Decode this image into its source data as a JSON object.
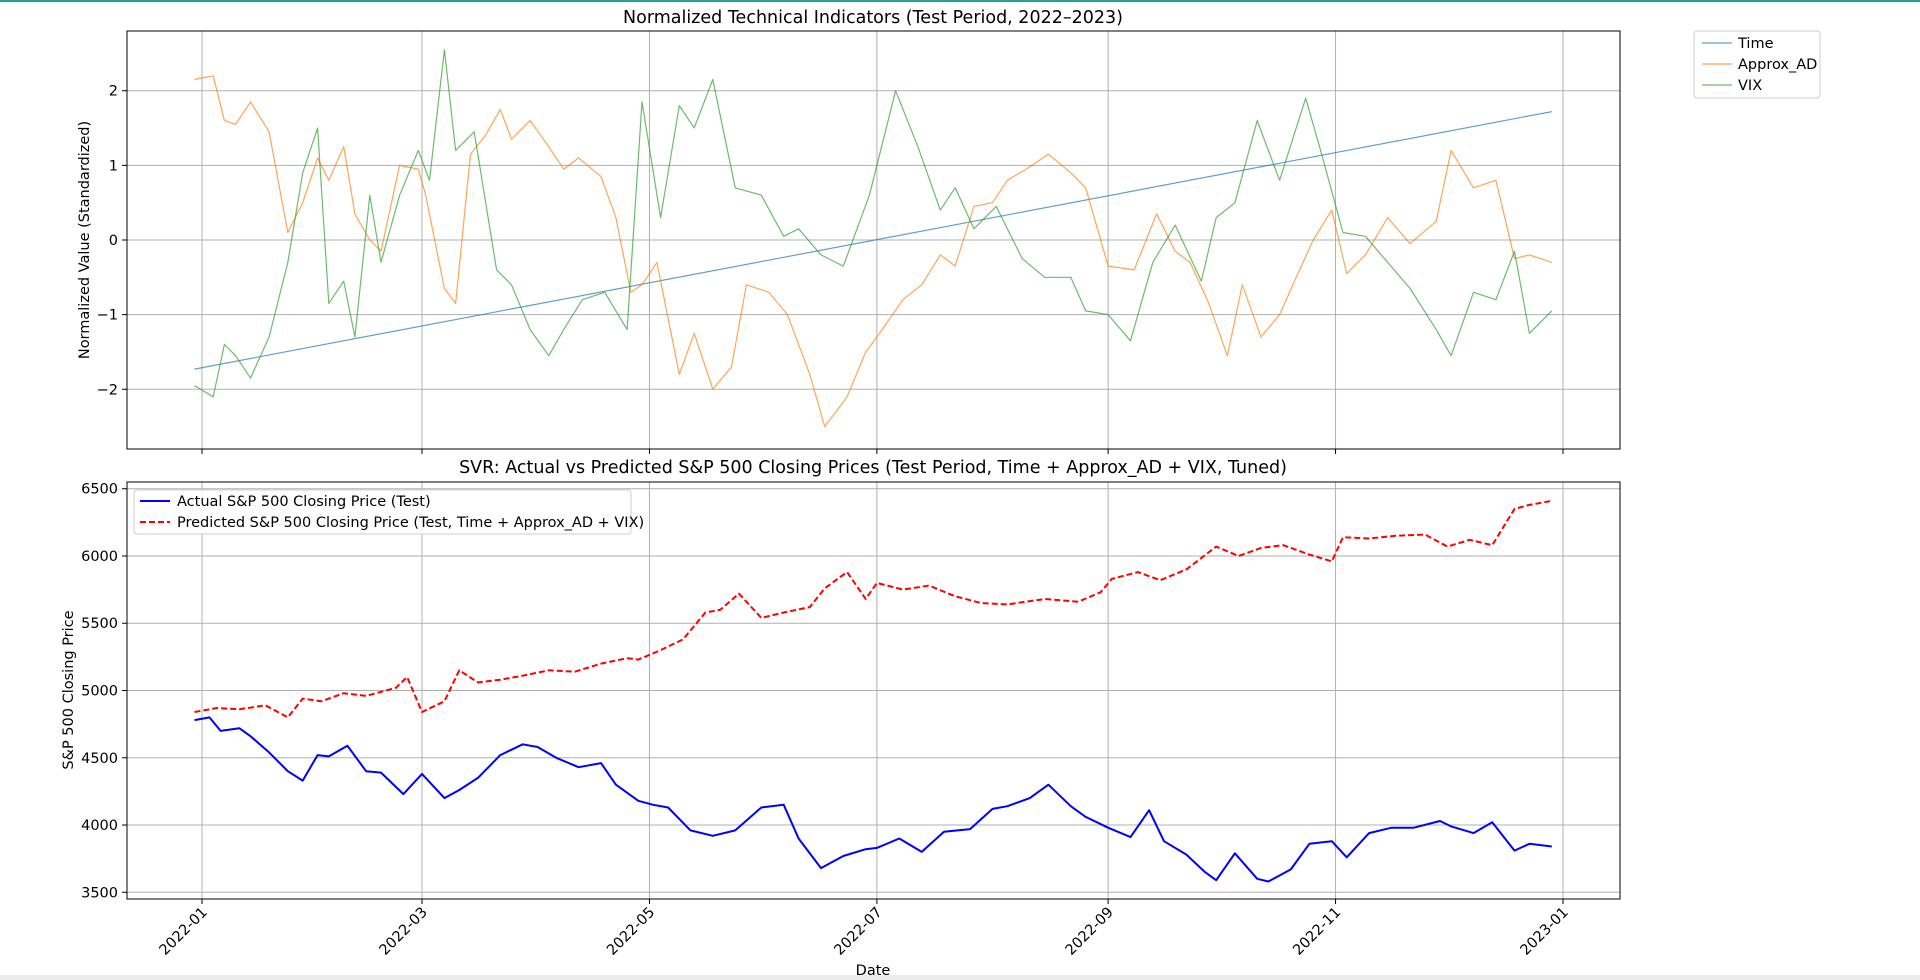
{
  "colors": {
    "time": "#1f77b4",
    "approx_ad": "#ff7f0e",
    "vix": "#2ca02c",
    "actual": "#0000ff",
    "predicted": "#ff0000",
    "accent_bar": "#20a0a0"
  },
  "chart_data": [
    {
      "type": "line",
      "title": "Normalized Technical Indicators (Test Period, 2022–2023)",
      "xlabel": "",
      "ylabel": "Normalized Value (Standardized)",
      "ylim": [
        -2.8,
        2.8
      ],
      "yticks": [
        -2,
        -1,
        0,
        1,
        2
      ],
      "ytick_labels": [
        "−2",
        "−1",
        "0",
        "1",
        "2"
      ],
      "legend": "outside-top-right",
      "grid": true,
      "series": [
        {
          "name": "Time",
          "x": [
            "2021-12-30",
            "2022-12-29"
          ],
          "values": [
            -1.73,
            1.72
          ]
        },
        {
          "name": "Approx_AD",
          "x": [
            "2021-12-30",
            "2022-01-04",
            "2022-01-07",
            "2022-01-10",
            "2022-01-14",
            "2022-01-19",
            "2022-01-24",
            "2022-01-28",
            "2022-02-01",
            "2022-02-04",
            "2022-02-08",
            "2022-02-11",
            "2022-02-15",
            "2022-02-18",
            "2022-02-23",
            "2022-02-28",
            "2022-03-02",
            "2022-03-07",
            "2022-03-10",
            "2022-03-14",
            "2022-03-18",
            "2022-03-22",
            "2022-03-25",
            "2022-03-30",
            "2022-04-04",
            "2022-04-08",
            "2022-04-12",
            "2022-04-18",
            "2022-04-22",
            "2022-04-26",
            "2022-04-29",
            "2022-05-03",
            "2022-05-09",
            "2022-05-13",
            "2022-05-18",
            "2022-05-23",
            "2022-05-27",
            "2022-06-02",
            "2022-06-07",
            "2022-06-13",
            "2022-06-17",
            "2022-06-23",
            "2022-06-28",
            "2022-07-01",
            "2022-07-08",
            "2022-07-13",
            "2022-07-18",
            "2022-07-22",
            "2022-07-27",
            "2022-08-01",
            "2022-08-05",
            "2022-08-10",
            "2022-08-16",
            "2022-08-22",
            "2022-08-26",
            "2022-09-01",
            "2022-09-08",
            "2022-09-14",
            "2022-09-19",
            "2022-09-23",
            "2022-09-28",
            "2022-10-03",
            "2022-10-07",
            "2022-10-12",
            "2022-10-17",
            "2022-10-21",
            "2022-10-26",
            "2022-10-31",
            "2022-11-04",
            "2022-11-09",
            "2022-11-15",
            "2022-11-21",
            "2022-11-28",
            "2022-12-02",
            "2022-12-08",
            "2022-12-14",
            "2022-12-19",
            "2022-12-23",
            "2022-12-29"
          ],
          "values": [
            2.15,
            2.2,
            1.6,
            1.55,
            1.85,
            1.45,
            0.1,
            0.5,
            1.1,
            0.8,
            1.25,
            0.35,
            0.0,
            -0.15,
            1.0,
            0.95,
            0.6,
            -0.65,
            -0.85,
            1.15,
            1.4,
            1.75,
            1.35,
            1.6,
            1.25,
            0.95,
            1.1,
            0.85,
            0.3,
            -0.7,
            -0.6,
            -0.3,
            -1.8,
            -1.25,
            -2.0,
            -1.7,
            -0.6,
            -0.7,
            -1.0,
            -1.8,
            -2.5,
            -2.1,
            -1.5,
            -1.3,
            -0.8,
            -0.6,
            -0.2,
            -0.35,
            0.45,
            0.5,
            0.8,
            0.95,
            1.15,
            0.9,
            0.7,
            -0.35,
            -0.4,
            0.35,
            -0.15,
            -0.3,
            -0.85,
            -1.55,
            -0.6,
            -1.3,
            -1.0,
            -0.55,
            0.0,
            0.4,
            -0.45,
            -0.2,
            0.3,
            -0.05,
            0.25,
            1.2,
            0.7,
            0.8,
            -0.25,
            -0.2,
            -0.3
          ]
        },
        {
          "name": "VIX",
          "x": [
            "2021-12-30",
            "2022-01-04",
            "2022-01-07",
            "2022-01-10",
            "2022-01-14",
            "2022-01-19",
            "2022-01-24",
            "2022-01-28",
            "2022-02-01",
            "2022-02-04",
            "2022-02-08",
            "2022-02-11",
            "2022-02-15",
            "2022-02-18",
            "2022-02-23",
            "2022-02-28",
            "2022-03-03",
            "2022-03-07",
            "2022-03-10",
            "2022-03-15",
            "2022-03-21",
            "2022-03-25",
            "2022-03-30",
            "2022-04-04",
            "2022-04-08",
            "2022-04-13",
            "2022-04-19",
            "2022-04-25",
            "2022-04-29",
            "2022-05-04",
            "2022-05-09",
            "2022-05-13",
            "2022-05-18",
            "2022-05-24",
            "2022-05-31",
            "2022-06-06",
            "2022-06-10",
            "2022-06-16",
            "2022-06-22",
            "2022-06-29",
            "2022-07-06",
            "2022-07-12",
            "2022-07-18",
            "2022-07-22",
            "2022-07-27",
            "2022-08-02",
            "2022-08-09",
            "2022-08-15",
            "2022-08-22",
            "2022-08-26",
            "2022-09-01",
            "2022-09-07",
            "2022-09-13",
            "2022-09-19",
            "2022-09-26",
            "2022-09-30",
            "2022-10-05",
            "2022-10-11",
            "2022-10-17",
            "2022-10-24",
            "2022-10-28",
            "2022-11-03",
            "2022-11-09",
            "2022-11-15",
            "2022-11-21",
            "2022-11-28",
            "2022-12-02",
            "2022-12-08",
            "2022-12-14",
            "2022-12-19",
            "2022-12-23",
            "2022-12-29"
          ],
          "values": [
            -1.95,
            -2.1,
            -1.4,
            -1.55,
            -1.85,
            -1.3,
            -0.3,
            0.9,
            1.5,
            -0.85,
            -0.55,
            -1.3,
            0.6,
            -0.3,
            0.6,
            1.2,
            0.8,
            2.55,
            1.2,
            1.45,
            -0.4,
            -0.6,
            -1.2,
            -1.55,
            -1.2,
            -0.8,
            -0.7,
            -1.2,
            1.85,
            0.3,
            1.8,
            1.5,
            2.15,
            0.7,
            0.6,
            0.05,
            0.15,
            -0.2,
            -0.35,
            0.6,
            2.0,
            1.25,
            0.4,
            0.7,
            0.15,
            0.45,
            -0.25,
            -0.5,
            -0.5,
            -0.95,
            -1.0,
            -1.35,
            -0.3,
            0.2,
            -0.55,
            0.3,
            0.5,
            1.6,
            0.8,
            1.9,
            1.2,
            0.1,
            0.05,
            -0.3,
            -0.65,
            -1.2,
            -1.55,
            -0.7,
            -0.8,
            -0.15,
            -1.25,
            -0.95
          ]
        }
      ]
    },
    {
      "type": "line",
      "title": "SVR: Actual vs Predicted S&P 500 Closing Prices (Test Period, Time + Approx_AD + VIX, Tuned)",
      "xlabel": "Date",
      "ylabel": "S&P 500 Closing Price",
      "ylim": [
        3450,
        6550
      ],
      "yticks": [
        3500,
        4000,
        4500,
        5000,
        5500,
        6000,
        6500
      ],
      "legend": "upper-left",
      "grid": true,
      "series": [
        {
          "name": "Actual S&P 500 Closing Price (Test)",
          "style": "solid",
          "x": [
            "2021-12-30",
            "2022-01-03",
            "2022-01-06",
            "2022-01-11",
            "2022-01-14",
            "2022-01-19",
            "2022-01-24",
            "2022-01-28",
            "2022-02-01",
            "2022-02-04",
            "2022-02-09",
            "2022-02-14",
            "2022-02-18",
            "2022-02-24",
            "2022-03-01",
            "2022-03-07",
            "2022-03-11",
            "2022-03-16",
            "2022-03-22",
            "2022-03-28",
            "2022-04-01",
            "2022-04-06",
            "2022-04-12",
            "2022-04-18",
            "2022-04-22",
            "2022-04-28",
            "2022-05-02",
            "2022-05-06",
            "2022-05-12",
            "2022-05-18",
            "2022-05-24",
            "2022-05-31",
            "2022-06-06",
            "2022-06-10",
            "2022-06-16",
            "2022-06-22",
            "2022-06-28",
            "2022-07-01",
            "2022-07-07",
            "2022-07-13",
            "2022-07-19",
            "2022-07-26",
            "2022-08-01",
            "2022-08-05",
            "2022-08-11",
            "2022-08-16",
            "2022-08-22",
            "2022-08-26",
            "2022-09-01",
            "2022-09-07",
            "2022-09-12",
            "2022-09-16",
            "2022-09-22",
            "2022-09-27",
            "2022-09-30",
            "2022-10-05",
            "2022-10-11",
            "2022-10-14",
            "2022-10-20",
            "2022-10-25",
            "2022-10-31",
            "2022-11-04",
            "2022-11-10",
            "2022-11-16",
            "2022-11-22",
            "2022-11-29",
            "2022-12-02",
            "2022-12-08",
            "2022-12-13",
            "2022-12-19",
            "2022-12-23",
            "2022-12-29"
          ],
          "values": [
            4780,
            4800,
            4700,
            4720,
            4660,
            4540,
            4400,
            4330,
            4520,
            4510,
            4590,
            4400,
            4390,
            4230,
            4380,
            4200,
            4260,
            4350,
            4520,
            4600,
            4580,
            4500,
            4430,
            4460,
            4300,
            4180,
            4150,
            4130,
            3960,
            3920,
            3960,
            4130,
            4150,
            3900,
            3680,
            3770,
            3820,
            3830,
            3900,
            3800,
            3950,
            3970,
            4120,
            4140,
            4200,
            4300,
            4140,
            4060,
            3980,
            3910,
            4110,
            3880,
            3780,
            3650,
            3590,
            3790,
            3600,
            3580,
            3670,
            3860,
            3880,
            3760,
            3940,
            3980,
            3980,
            4030,
            3990,
            3940,
            4020,
            3810,
            3860,
            3840
          ]
        },
        {
          "name": "Predicted S&P 500 Closing Price (Test, Time + Approx_AD + VIX)",
          "style": "dashed",
          "x": [
            "2021-12-30",
            "2022-01-05",
            "2022-01-11",
            "2022-01-18",
            "2022-01-24",
            "2022-01-28",
            "2022-02-02",
            "2022-02-08",
            "2022-02-14",
            "2022-02-22",
            "2022-02-25",
            "2022-03-01",
            "2022-03-07",
            "2022-03-11",
            "2022-03-16",
            "2022-03-22",
            "2022-03-28",
            "2022-04-04",
            "2022-04-11",
            "2022-04-18",
            "2022-04-25",
            "2022-04-28",
            "2022-05-04",
            "2022-05-10",
            "2022-05-16",
            "2022-05-20",
            "2022-05-25",
            "2022-05-31",
            "2022-06-06",
            "2022-06-13",
            "2022-06-17",
            "2022-06-23",
            "2022-06-28",
            "2022-07-01",
            "2022-07-08",
            "2022-07-15",
            "2022-07-22",
            "2022-07-29",
            "2022-08-05",
            "2022-08-15",
            "2022-08-24",
            "2022-08-30",
            "2022-09-02",
            "2022-09-09",
            "2022-09-15",
            "2022-09-22",
            "2022-09-30",
            "2022-10-06",
            "2022-10-12",
            "2022-10-18",
            "2022-10-25",
            "2022-10-31",
            "2022-11-03",
            "2022-11-10",
            "2022-11-17",
            "2022-11-25",
            "2022-12-01",
            "2022-12-07",
            "2022-12-13",
            "2022-12-19",
            "2022-12-23",
            "2022-12-29"
          ],
          "values": [
            4840,
            4870,
            4860,
            4890,
            4800,
            4940,
            4920,
            4980,
            4960,
            5020,
            5100,
            4840,
            4920,
            5150,
            5060,
            5080,
            5110,
            5150,
            5140,
            5200,
            5240,
            5230,
            5300,
            5380,
            5580,
            5600,
            5720,
            5540,
            5580,
            5620,
            5760,
            5880,
            5680,
            5800,
            5750,
            5780,
            5700,
            5650,
            5640,
            5680,
            5660,
            5730,
            5830,
            5880,
            5820,
            5900,
            6070,
            6000,
            6060,
            6080,
            6010,
            5960,
            6140,
            6130,
            6150,
            6160,
            6070,
            6120,
            6080,
            6350,
            6380,
            6410
          ]
        }
      ]
    }
  ],
  "x_axis": {
    "ticks": [
      "2022-01-01",
      "2022-03-01",
      "2022-05-01",
      "2022-07-01",
      "2022-09-01",
      "2022-11-01",
      "2023-01-01"
    ],
    "labels": [
      "2022-01",
      "2022-03",
      "2022-05",
      "2022-07",
      "2022-09",
      "2022-11",
      "2023-01"
    ]
  }
}
